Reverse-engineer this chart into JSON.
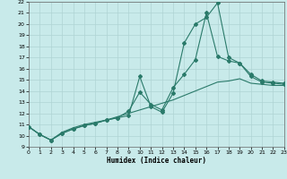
{
  "xlabel": "Humidex (Indice chaleur)",
  "background_color": "#c8eaea",
  "grid_color": "#afd4d4",
  "line_color": "#2a7a6a",
  "xmin": 0,
  "xmax": 23,
  "ymin": 9,
  "ymax": 22,
  "line1_x": [
    0,
    1,
    2,
    3,
    4,
    5,
    6,
    7,
    8,
    9,
    10,
    11,
    12,
    13,
    14,
    15,
    16,
    17,
    18,
    19,
    20,
    21,
    22,
    23
  ],
  "line1_y": [
    10.8,
    10.1,
    9.6,
    10.2,
    10.6,
    10.9,
    11.1,
    11.4,
    11.6,
    11.8,
    15.3,
    12.6,
    12.1,
    13.8,
    18.3,
    20.0,
    20.6,
    21.9,
    17.0,
    16.5,
    15.3,
    14.8,
    14.7,
    14.6
  ],
  "line2_x": [
    0,
    1,
    2,
    3,
    4,
    5,
    6,
    7,
    8,
    9,
    10,
    11,
    12,
    13,
    14,
    15,
    16,
    17,
    18,
    19,
    20,
    21,
    22,
    23
  ],
  "line2_y": [
    10.8,
    10.1,
    9.6,
    10.2,
    10.6,
    10.9,
    11.1,
    11.4,
    11.6,
    12.2,
    13.9,
    12.8,
    12.3,
    14.3,
    15.5,
    16.8,
    21.0,
    17.1,
    16.7,
    16.5,
    15.5,
    14.9,
    14.8,
    14.7
  ],
  "line3_x": [
    0,
    1,
    2,
    3,
    4,
    5,
    6,
    7,
    8,
    9,
    10,
    11,
    12,
    13,
    14,
    15,
    16,
    17,
    18,
    19,
    20,
    21,
    22,
    23
  ],
  "line3_y": [
    10.8,
    10.1,
    9.6,
    10.3,
    10.7,
    11.0,
    11.2,
    11.4,
    11.7,
    12.0,
    12.3,
    12.6,
    12.9,
    13.2,
    13.6,
    14.0,
    14.4,
    14.8,
    14.9,
    15.1,
    14.7,
    14.6,
    14.5,
    14.5
  ]
}
